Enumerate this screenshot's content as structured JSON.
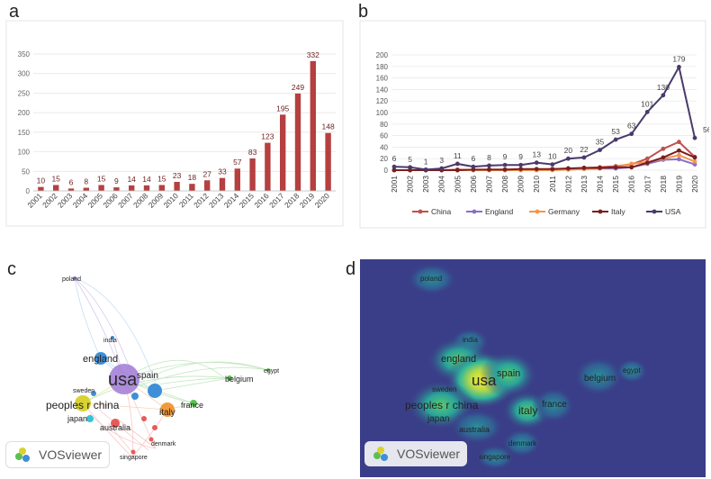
{
  "panels": {
    "a": "a",
    "b": "b",
    "c": "c",
    "d": "d"
  },
  "chart_data": [
    {
      "type": "bar",
      "panel": "a",
      "title": "",
      "categories": [
        "2001",
        "2002",
        "2003",
        "2004",
        "2005",
        "2006",
        "2007",
        "2008",
        "2009",
        "2010",
        "2011",
        "2012",
        "2013",
        "2014",
        "2015",
        "2016",
        "2017",
        "2018",
        "2019",
        "2020"
      ],
      "values": [
        10,
        15,
        6,
        8,
        15,
        9,
        14,
        14,
        15,
        23,
        18,
        27,
        33,
        57,
        83,
        123,
        195,
        249,
        332,
        148
      ],
      "ylim": [
        0,
        350
      ],
      "yticks": [
        0,
        50,
        100,
        150,
        200,
        250,
        300,
        350
      ],
      "bar_color": "#b5403f"
    },
    {
      "type": "line",
      "panel": "b",
      "title": "",
      "categories": [
        "2001",
        "2002",
        "2003",
        "2004",
        "2005",
        "2006",
        "2007",
        "2008",
        "2009",
        "2010",
        "2011",
        "2012",
        "2013",
        "2014",
        "2015",
        "2016",
        "2017",
        "2018",
        "2019",
        "2020"
      ],
      "ylim": [
        0,
        200
      ],
      "yticks": [
        0,
        20,
        40,
        60,
        80,
        100,
        120,
        140,
        160,
        180,
        200
      ],
      "series": [
        {
          "name": "China",
          "color": "#c0504d",
          "values": [
            0,
            0,
            0,
            0,
            1,
            0,
            1,
            1,
            1,
            1,
            2,
            3,
            4,
            5,
            7,
            10,
            20,
            37,
            49,
            23
          ]
        },
        {
          "name": "England",
          "color": "#8a6fc4",
          "values": [
            0,
            0,
            0,
            0,
            0,
            0,
            0,
            0,
            0,
            0,
            1,
            1,
            2,
            3,
            3,
            5,
            11,
            18,
            19,
            10
          ]
        },
        {
          "name": "Germany",
          "color": "#f5954a",
          "values": [
            0,
            0,
            0,
            0,
            0,
            0,
            0,
            0,
            0,
            0,
            0,
            1,
            2,
            3,
            6,
            11,
            14,
            20,
            26,
            15
          ]
        },
        {
          "name": "Italy",
          "color": "#7a1f1f",
          "values": [
            0,
            0,
            0,
            0,
            0,
            1,
            1,
            1,
            2,
            2,
            2,
            3,
            4,
            4,
            5,
            5,
            13,
            22,
            34,
            22
          ]
        },
        {
          "name": "USA",
          "color": "#4a3a6b",
          "values": [
            6,
            5,
            1,
            3,
            11,
            6,
            8,
            9,
            9,
            13,
            10,
            20,
            22,
            35,
            53,
            63,
            101,
            130,
            179,
            56
          ],
          "labels": [
            "6",
            "5",
            "1",
            "3",
            "11",
            "6",
            "8",
            "9",
            "9",
            "13",
            "10",
            "20",
            "22",
            "35",
            "53",
            "63",
            "101",
            "130",
            "179",
            "56"
          ]
        }
      ]
    }
  ],
  "network": {
    "nodes": [
      {
        "name": "usa",
        "label": "usa"
      },
      {
        "name": "spain",
        "label": "spain"
      },
      {
        "name": "england",
        "label": "england"
      },
      {
        "name": "peoples r china",
        "label": "peoples r china"
      },
      {
        "name": "italy",
        "label": "italy"
      },
      {
        "name": "france",
        "label": "france"
      },
      {
        "name": "belgium",
        "label": "belgium"
      },
      {
        "name": "egypt",
        "label": "egypt"
      },
      {
        "name": "india",
        "label": "india"
      },
      {
        "name": "poland",
        "label": "poland"
      },
      {
        "name": "sweden",
        "label": "sweden"
      },
      {
        "name": "japan",
        "label": "japan"
      },
      {
        "name": "australia",
        "label": "australia"
      },
      {
        "name": "denmark",
        "label": "denmark"
      },
      {
        "name": "singapore",
        "label": "singapore"
      }
    ],
    "brand": "VOSviewer",
    "colors": {
      "purple": "#a07ad6",
      "blue": "#3f8fd8",
      "yellow": "#d8d232",
      "orange": "#f29a3a",
      "green": "#5cbf54",
      "red": "#e85a5a",
      "cyan": "#38c2d6",
      "density_bg": "#3a3d87"
    }
  }
}
